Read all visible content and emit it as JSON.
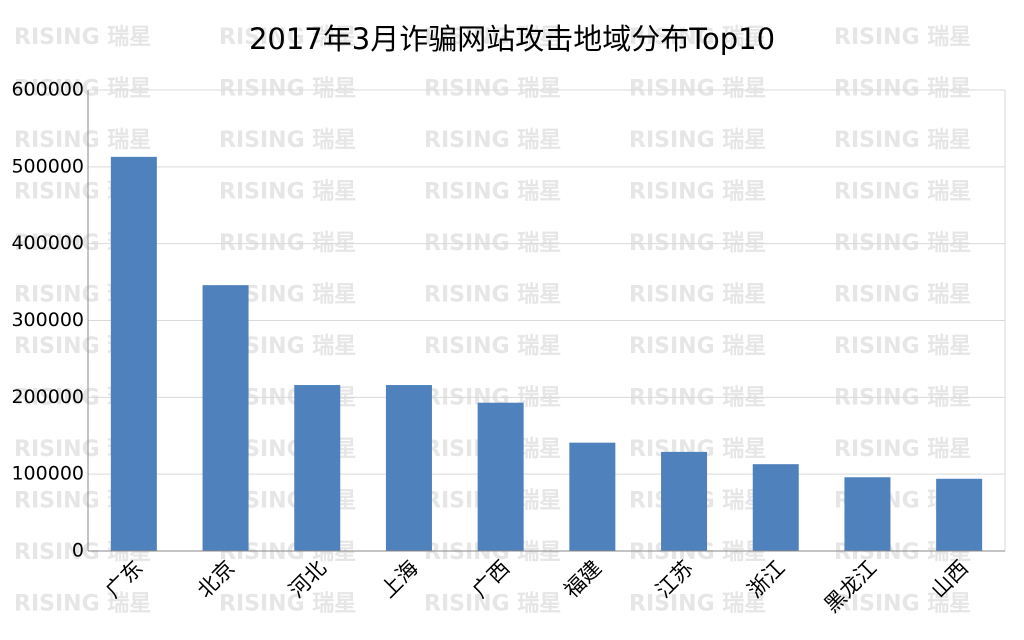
{
  "chart_data": {
    "type": "bar",
    "title": "2017年3月诈骗网站攻击地域分布Top10",
    "watermark": "RISING 瑞星",
    "categories": [
      "广东",
      "北京",
      "河北",
      "上海",
      "广西",
      "福建",
      "江苏",
      "浙江",
      "黑龙江",
      "山西"
    ],
    "values": [
      513000,
      346000,
      216000,
      216000,
      193000,
      141000,
      129000,
      113000,
      96000,
      94000
    ],
    "color": "#4f81bd",
    "ylim": [
      0,
      600000
    ],
    "yticks": [
      0,
      100000,
      200000,
      300000,
      400000,
      500000,
      600000
    ],
    "grid": true
  }
}
